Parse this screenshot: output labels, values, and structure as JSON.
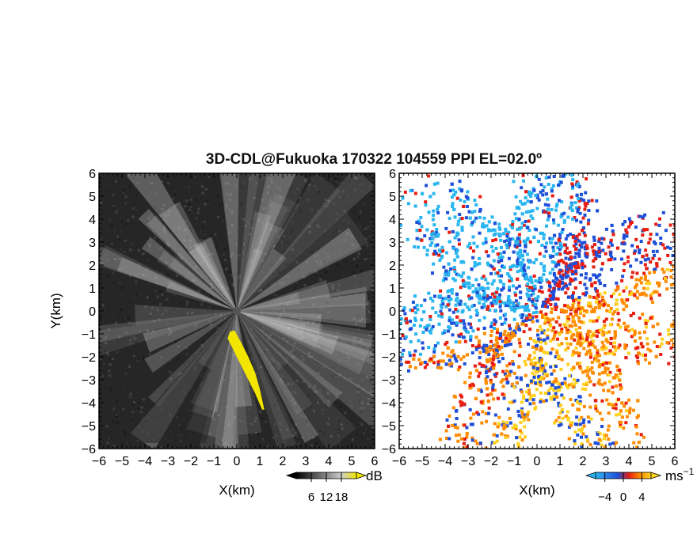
{
  "chart_data": [
    {
      "type": "heatmap",
      "title": "3D-CDL@Fukuoka 170322 104559 PPI EL=02.0º",
      "panel": "reflectivity",
      "xlabel": "X(km)",
      "ylabel": "Y(km)",
      "xlim": [
        -6,
        6
      ],
      "ylim": [
        -6,
        6
      ],
      "xticks": [
        "−6",
        "−5",
        "−4",
        "−3",
        "−2",
        "−1",
        "0",
        "1",
        "2",
        "3",
        "4",
        "5",
        "6"
      ],
      "yticks": [
        "6",
        "5",
        "4",
        "3",
        "2",
        "1",
        "0",
        "−1",
        "−2",
        "−3",
        "−4",
        "−5",
        "−6"
      ],
      "colorbar": {
        "unit": "dB",
        "ticks": [
          "6",
          "12",
          "18"
        ],
        "range": [
          0,
          24
        ],
        "colormap": "grayscale-yellow"
      },
      "colors": {
        "background": "#262626",
        "highlight": "#f2e600",
        "center": "#555555"
      }
    },
    {
      "type": "heatmap",
      "panel": "doppler-velocity",
      "xlabel": "X(km)",
      "xlim": [
        -6,
        6
      ],
      "ylim": [
        -6,
        6
      ],
      "xticks": [
        "−6",
        "−5",
        "−4",
        "−3",
        "−2",
        "−1",
        "0",
        "1",
        "2",
        "3",
        "4",
        "5",
        "6"
      ],
      "yticks": [
        "6",
        "5",
        "4",
        "3",
        "2",
        "1",
        "0",
        "−1",
        "−2",
        "−3",
        "−4",
        "−5",
        "−6"
      ],
      "colorbar": {
        "unit": "ms",
        "unit_exponent": "−1",
        "ticks": [
          "−4",
          "0",
          "4"
        ],
        "range": [
          -6,
          6
        ],
        "colormap": "cyan-blue-red-orange-yellow"
      },
      "colors": {
        "cyan": "#29b6f0",
        "blue": "#1e4fd8",
        "red": "#e81d10",
        "orange": "#ff8c00",
        "yellow": "#ffd21e"
      }
    }
  ]
}
